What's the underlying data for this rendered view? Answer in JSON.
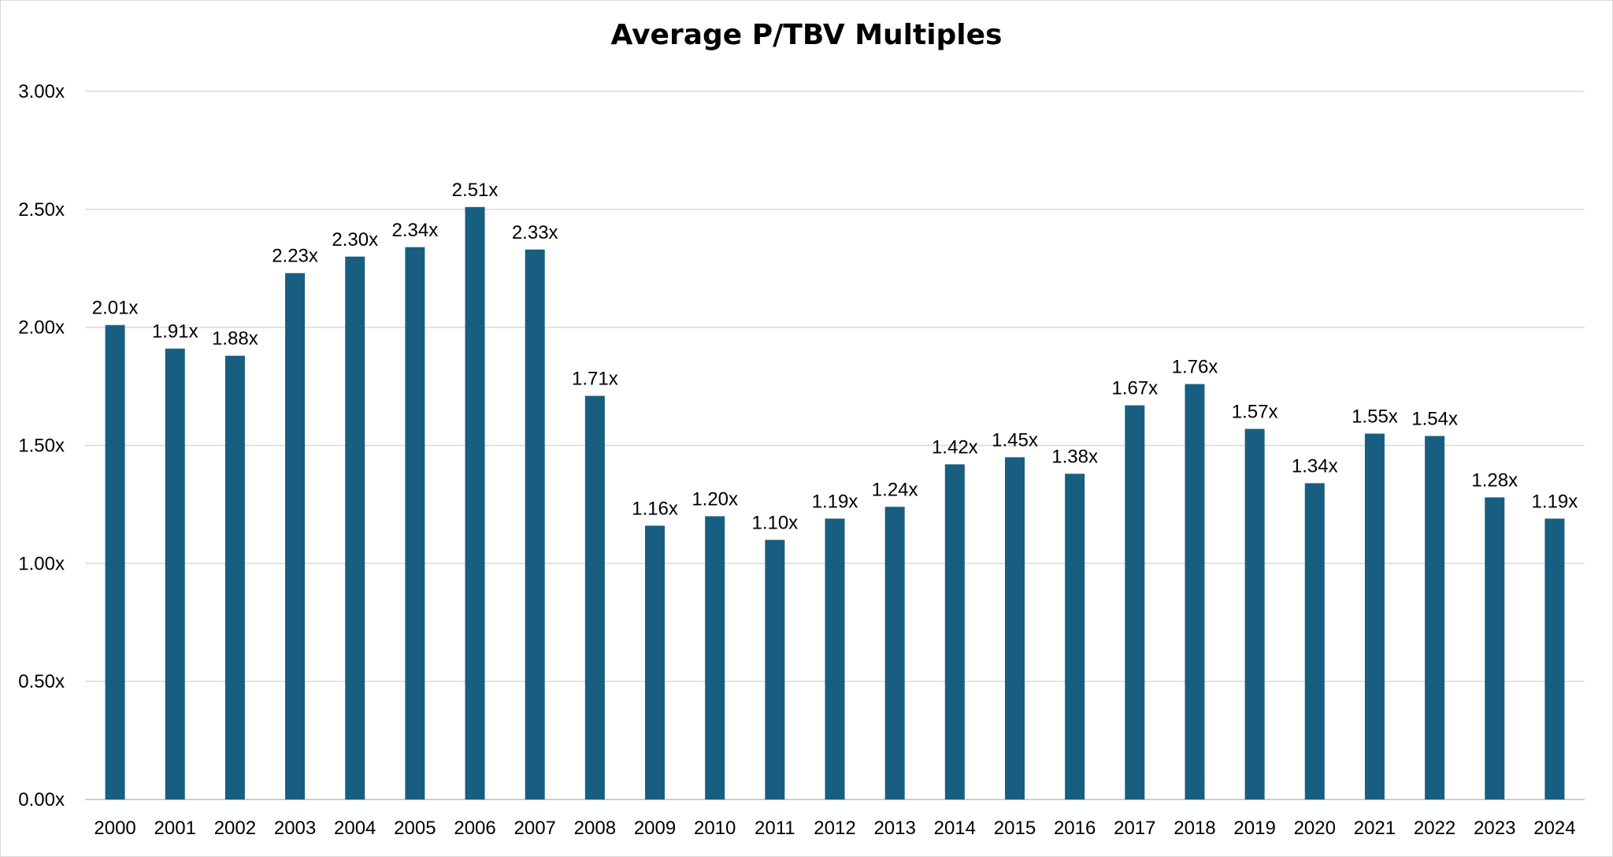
{
  "chart_data": {
    "type": "bar",
    "title": "Average P/TBV Multiples",
    "xlabel": "",
    "ylabel": "",
    "ylim": [
      0,
      3
    ],
    "y_ticks": [
      "0.00x",
      "0.50x",
      "1.00x",
      "1.50x",
      "2.00x",
      "2.50x",
      "3.00x"
    ],
    "grid": true,
    "legend": "none",
    "bar_color": "#175E81",
    "categories": [
      "2000",
      "2001",
      "2002",
      "2003",
      "2004",
      "2005",
      "2006",
      "2007",
      "2008",
      "2009",
      "2010",
      "2011",
      "2012",
      "2013",
      "2014",
      "2015",
      "2016",
      "2017",
      "2018",
      "2019",
      "2020",
      "2021",
      "2022",
      "2023",
      "2024"
    ],
    "values": [
      2.01,
      1.91,
      1.88,
      2.23,
      2.3,
      2.34,
      2.51,
      2.33,
      1.71,
      1.16,
      1.2,
      1.1,
      1.19,
      1.24,
      1.42,
      1.45,
      1.38,
      1.67,
      1.76,
      1.57,
      1.34,
      1.55,
      1.54,
      1.28,
      1.19
    ],
    "data_labels": [
      "2.01x",
      "1.91x",
      "1.88x",
      "2.23x",
      "2.30x",
      "2.34x",
      "2.51x",
      "2.33x",
      "1.71x",
      "1.16x",
      "1.20x",
      "1.10x",
      "1.19x",
      "1.24x",
      "1.42x",
      "1.45x",
      "1.38x",
      "1.67x",
      "1.76x",
      "1.57x",
      "1.34x",
      "1.55x",
      "1.54x",
      "1.28x",
      "1.19x"
    ]
  }
}
